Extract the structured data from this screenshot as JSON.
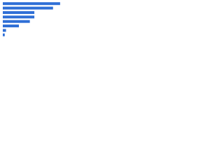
{
  "chart_data": {
    "type": "barh",
    "categories": [
      null,
      null,
      null,
      null,
      null,
      null,
      null,
      null
    ],
    "values": [
      89,
      78,
      49,
      49,
      42,
      25,
      5,
      3
    ],
    "color": "#2f6fd6",
    "xlim": [
      0,
      100
    ]
  }
}
